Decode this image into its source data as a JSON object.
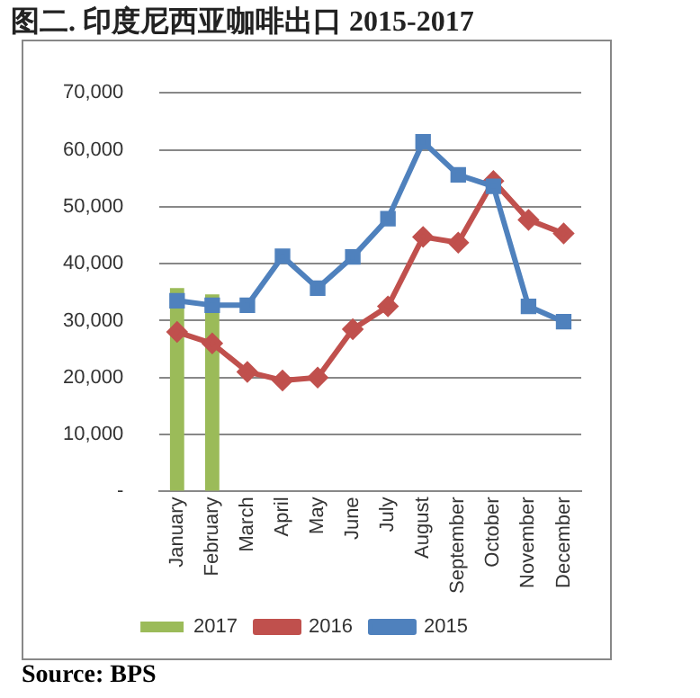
{
  "chart_data": {
    "type": "bar",
    "title": "图二. 印度尼西亚咖啡出口 2015-2017",
    "categories": [
      "January",
      "February",
      "March",
      "April",
      "May",
      "June",
      "July",
      "August",
      "September",
      "October",
      "November",
      "December"
    ],
    "series": [
      {
        "name": "2017",
        "color": "#9bbb59",
        "values": [
          35700,
          34600,
          null,
          null,
          null,
          null,
          null,
          null,
          null,
          null,
          null,
          null
        ]
      },
      {
        "name": "2016",
        "type": "line",
        "color": "#c0504d",
        "marker": "diamond",
        "values": [
          28000,
          26000,
          21000,
          19500,
          20000,
          28500,
          32500,
          44700,
          43700,
          54500,
          47700,
          45300
        ]
      },
      {
        "name": "2015",
        "type": "line",
        "color": "#4f81bd",
        "marker": "square",
        "values": [
          33500,
          32700,
          32700,
          41300,
          35700,
          41200,
          47900,
          61400,
          55600,
          53600,
          32500,
          29800
        ]
      }
    ],
    "ylim": [
      0,
      70000
    ],
    "yticks": [
      {
        "value": 0,
        "label": "-"
      },
      {
        "value": 10000,
        "label": "10,000"
      },
      {
        "value": 20000,
        "label": "20,000"
      },
      {
        "value": 30000,
        "label": "30,000"
      },
      {
        "value": 40000,
        "label": "40,000"
      },
      {
        "value": 50000,
        "label": "50,000"
      },
      {
        "value": 60000,
        "label": "60,000"
      },
      {
        "value": 70000,
        "label": "70,000"
      }
    ],
    "grid": "y",
    "legend": "bottom",
    "annotations": [
      "Source: BPS"
    ]
  }
}
